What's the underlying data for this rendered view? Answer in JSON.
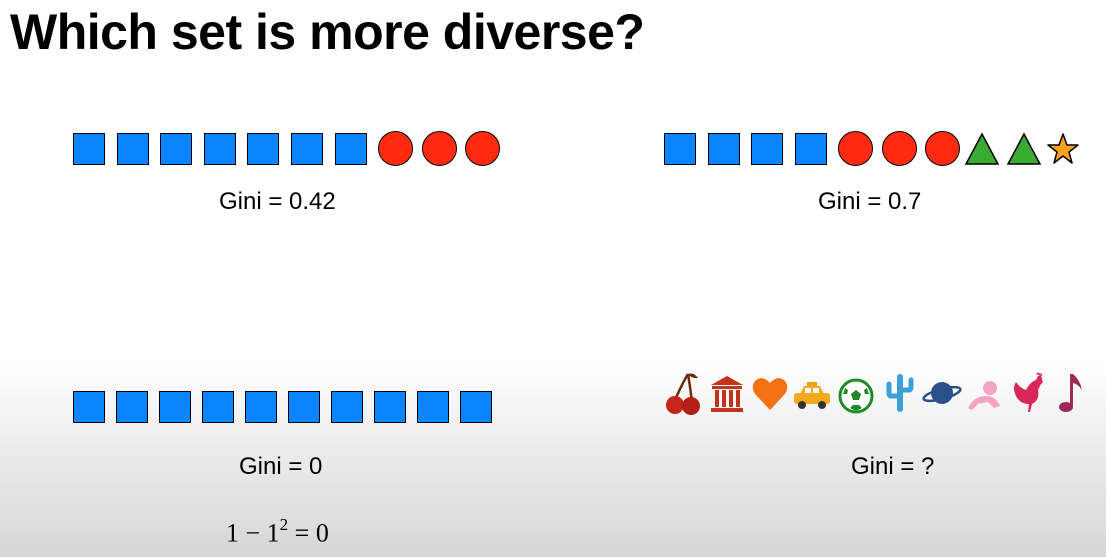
{
  "title": "Which set is more diverse?",
  "sets": {
    "top_left": {
      "composition": {
        "blue-square": 7,
        "red-circle": 3
      },
      "label": "Gini = 0.42"
    },
    "top_right": {
      "composition": {
        "blue-square": 4,
        "red-circle": 3,
        "green-triangle": 2,
        "orange-star": 1
      },
      "label": "Gini = 0.7"
    },
    "bottom_left": {
      "composition": {
        "blue-square": 10
      },
      "label": "Gini = 0",
      "formula": {
        "base": "1 − 1",
        "exponent": "2",
        "result": " = 0"
      }
    },
    "bottom_right": {
      "icons": [
        "cherries-icon",
        "bank-icon",
        "heart-icon",
        "taxi-icon",
        "soccer-ball-icon",
        "cactus-icon",
        "planet-icon",
        "baby-icon",
        "rooster-icon",
        "music-note-icon"
      ],
      "label": "Gini = ?"
    }
  },
  "colors": {
    "blue_square": "#0b84ff",
    "red_circle": "#ff2a0f",
    "green_triangle": "#3aaa35",
    "orange_star": "#ffa21a"
  }
}
